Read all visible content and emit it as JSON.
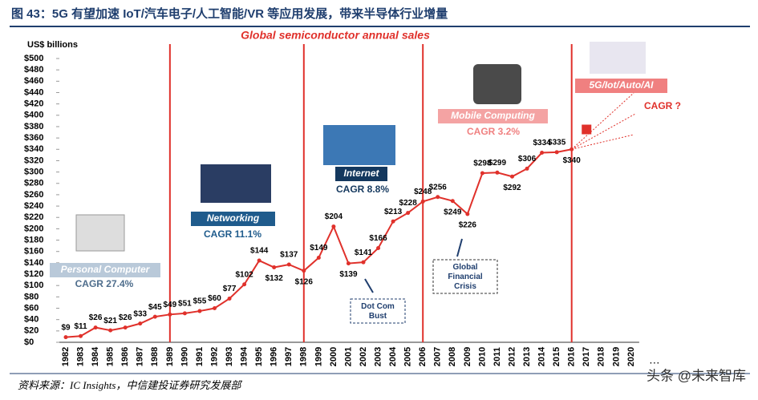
{
  "title": "图 43：5G 有望加速 IoT/汽车电子/人工智能/VR 等应用发展，带来半导体行业增量",
  "source": "资料来源：IC Insights，中信建投证券研究发展部",
  "watermark": "头条 @未来智库",
  "chart_data": {
    "type": "line",
    "title": "Global semiconductor annual sales",
    "y_label": "US$ billions",
    "categories": [
      "1982",
      "1983",
      "1984",
      "1985",
      "1986",
      "1987",
      "1988",
      "1989",
      "1990",
      "1991",
      "1992",
      "1993",
      "1994",
      "1995",
      "1996",
      "1997",
      "1998",
      "1999",
      "2000",
      "2001",
      "2002",
      "2003",
      "2004",
      "2005",
      "2006",
      "2007",
      "2008",
      "2009",
      "2010",
      "2011",
      "2012",
      "2013",
      "2014",
      "2015",
      "2016",
      "2017",
      "2018",
      "2019",
      "2020"
    ],
    "x_more": "…",
    "series": [
      {
        "color": "#e0312b",
        "values": [
          9,
          11,
          26,
          21,
          26,
          33,
          45,
          49,
          51,
          55,
          60,
          77,
          102,
          144,
          132,
          137,
          126,
          149,
          204,
          139,
          141,
          166,
          213,
          228,
          248,
          256,
          249,
          226,
          298,
          299,
          292,
          306,
          334,
          335,
          340,
          null,
          null,
          null,
          null
        ],
        "value_labels": [
          "$9",
          "$11",
          "$26",
          "$21",
          "$26",
          "$33",
          "$45",
          "$49",
          "$51",
          "$55",
          "$60",
          "$77",
          "$102",
          "$144",
          "$132",
          "$137",
          "$126",
          "$149",
          "$204",
          "$139",
          "$141",
          "$166",
          "$213",
          "$228",
          "$248",
          "$256",
          "$249",
          "$226",
          "$298",
          "$299",
          "$292",
          "$306",
          "$334",
          "$335",
          "$340",
          null,
          null,
          null,
          null
        ]
      },
      {
        "color": "#e0312b",
        "marker": "square",
        "values": [
          null,
          null,
          null,
          null,
          null,
          null,
          null,
          null,
          null,
          null,
          null,
          null,
          null,
          null,
          null,
          null,
          null,
          null,
          null,
          null,
          null,
          null,
          null,
          null,
          null,
          null,
          null,
          null,
          null,
          null,
          null,
          null,
          null,
          null,
          null,
          375,
          null,
          null,
          null
        ]
      }
    ],
    "ylim": [
      0,
      500
    ],
    "yticks": [
      {
        "value": 0,
        "label": "$0"
      },
      {
        "value": 20,
        "label": "$20"
      },
      {
        "value": 40,
        "label": "$40"
      },
      {
        "value": 60,
        "label": "$60"
      },
      {
        "value": 80,
        "label": "$80"
      },
      {
        "value": 100,
        "label": "$100"
      },
      {
        "value": 120,
        "label": "$120"
      },
      {
        "value": 140,
        "label": "$140"
      },
      {
        "value": 160,
        "label": "$160"
      },
      {
        "value": 180,
        "label": "$180"
      },
      {
        "value": 200,
        "label": "$200"
      },
      {
        "value": 220,
        "label": "$220"
      },
      {
        "value": 240,
        "label": "$240"
      },
      {
        "value": 260,
        "label": "$260"
      },
      {
        "value": 280,
        "label": "$280"
      },
      {
        "value": 300,
        "label": "$300"
      },
      {
        "value": 320,
        "label": "$320"
      },
      {
        "value": 340,
        "label": "$340"
      },
      {
        "value": 360,
        "label": "$360"
      },
      {
        "value": 380,
        "label": "$380"
      },
      {
        "value": 400,
        "label": "$400"
      },
      {
        "value": 420,
        "label": "$420"
      },
      {
        "value": 440,
        "label": "$440"
      },
      {
        "value": 460,
        "label": "$460"
      },
      {
        "value": 480,
        "label": "$480"
      },
      {
        "value": 500,
        "label": "$500"
      }
    ],
    "era_lines": [
      "1989",
      "1998",
      "2006",
      "2016"
    ],
    "eras": [
      {
        "label": "Personal Computer",
        "cagr": "CAGR 27.4%"
      },
      {
        "label": "Networking",
        "cagr": "CAGR 11.1%"
      },
      {
        "label": "Internet",
        "cagr": "CAGR 8.8%"
      },
      {
        "label": "Mobile Computing",
        "cagr": "CAGR 3.2%"
      },
      {
        "label": "5G/Iot/Auto/AI",
        "cagr": "CAGR ?"
      }
    ],
    "events": [
      "Dot Com Bust",
      "Global Financial Crisis"
    ]
  }
}
